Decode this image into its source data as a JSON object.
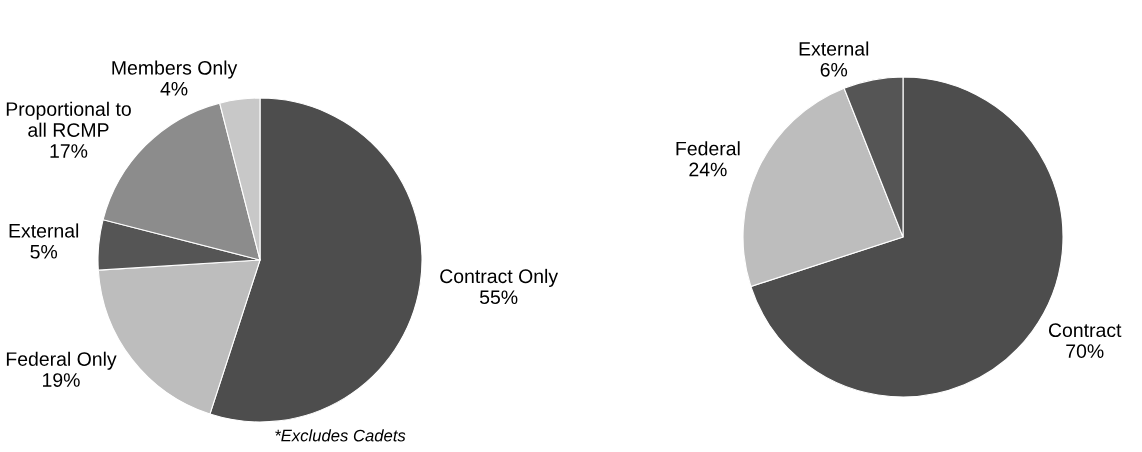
{
  "chart_data": [
    {
      "type": "pie",
      "categories": [
        "Contract Only",
        "Federal Only",
        "External",
        "Proportional to\nall RCMP",
        "Members Only"
      ],
      "values": [
        55,
        19,
        5,
        17,
        4
      ],
      "value_labels": [
        "55%",
        "19%",
        "5%",
        "17%",
        "4%"
      ],
      "colors": [
        "#4d4d4d",
        "#bdbdbd",
        "#555555",
        "#8c8c8c",
        "#c8c8c8"
      ],
      "annotations": [
        "*Excludes Cadets"
      ]
    },
    {
      "type": "pie",
      "categories": [
        "Contract",
        "Federal",
        "External"
      ],
      "values": [
        70,
        24,
        6
      ],
      "value_labels": [
        "70%",
        "24%",
        "6%"
      ],
      "colors": [
        "#4d4d4d",
        "#bdbdbd",
        "#555555"
      ]
    }
  ]
}
